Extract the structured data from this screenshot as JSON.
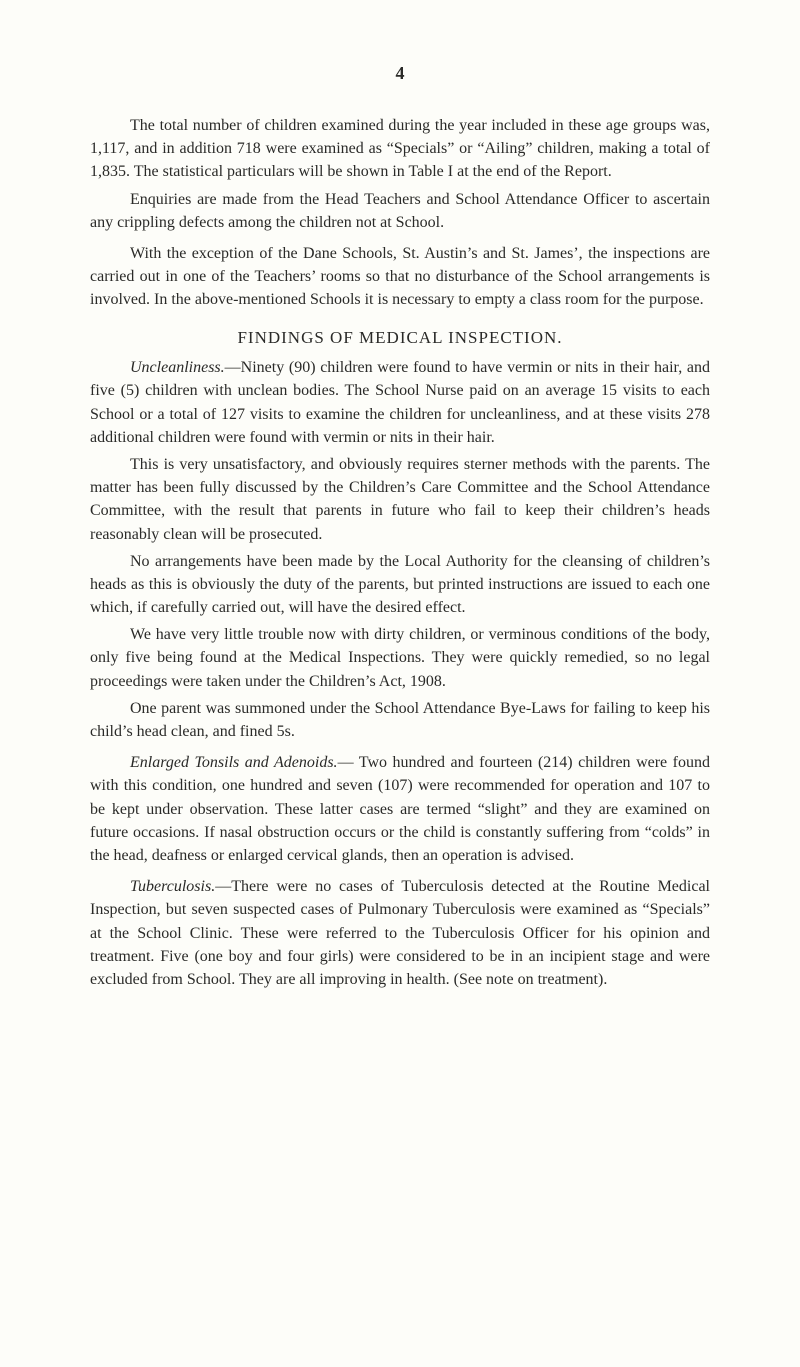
{
  "pageNumber": "4",
  "paragraphs": {
    "p1": "The total number of children examined during the year included in these age groups was, 1,117, and in addition 718 were examined as “Specials” or “Ailing” children, making a total of 1,835. The statistical particulars will be shown in Table I at the end of the Report.",
    "p2": "Enquiries are made from the Head Teachers and School Attendance Officer to ascertain any crippling defects among the children not at School.",
    "p3": "With the exception of the Dane Schools, St. Austin’s and St. James’, the inspections are carried out in one of the Teachers’ rooms so that no disturbance of the School arrangements is involved. In the above-mentioned Schools it is necessary to empty a class room for the purpose.",
    "heading1": "FINDINGS OF MEDICAL INSPECTION.",
    "p4_label": "Uncleanliness.",
    "p4_body": "—Ninety (90) children were found to have vermin or nits in their hair, and five (5) children with unclean bodies. The School Nurse paid on an average 15 visits to each School or a total of 127 visits to examine the children for uncleanliness, and at these visits 278 additional children were found with vermin or nits in their hair.",
    "p5": "This is very unsatisfactory, and obviously requires sterner methods with the parents. The matter has been fully discussed by the Children’s Care Committee and the School Attendance Committee, with the result that parents in future who fail to keep their children’s heads reasonably clean will be prosecuted.",
    "p6": "No arrangements have been made by the Local Authority for the cleansing of children’s heads as this is obviously the duty of the parents, but printed instructions are issued to each one which, if carefully carried out, will have the desired effect.",
    "p7": "We have very little trouble now with dirty children, or verminous conditions of the body, only five being found at the Medical Inspections. They were quickly remedied, so no legal proceedings were taken under the Children’s Act, 1908.",
    "p8": "One parent was summoned under the School Attendance Bye-Laws for failing to keep his child’s head clean, and fined 5s.",
    "p9_label": "Enlarged Tonsils and Adenoids.",
    "p9_body": "— Two hundred and fourteen (214) children were found with this condition, one hundred and seven (107) were recommended for operation and 107 to be kept under observation. These latter cases are termed “slight” and they are examined on future occasions. If nasal obstruction occurs or the child is constantly suffering from “colds” in the head, deafness or enlarged cervical glands, then an operation is advised.",
    "p10_label": "Tuberculosis.",
    "p10_body": "—There were no cases of Tuberculosis detected at the Routine Medical Inspection, but seven suspected cases of Pulmonary Tuberculosis were examined as “Specials” at the School Clinic. These were referred to the Tuberculosis Officer for his opinion and treatment. Five (one boy and four girls) were considered to be in an incipient stage and were excluded from School. They are all improving in health. (See note on treatment)."
  }
}
